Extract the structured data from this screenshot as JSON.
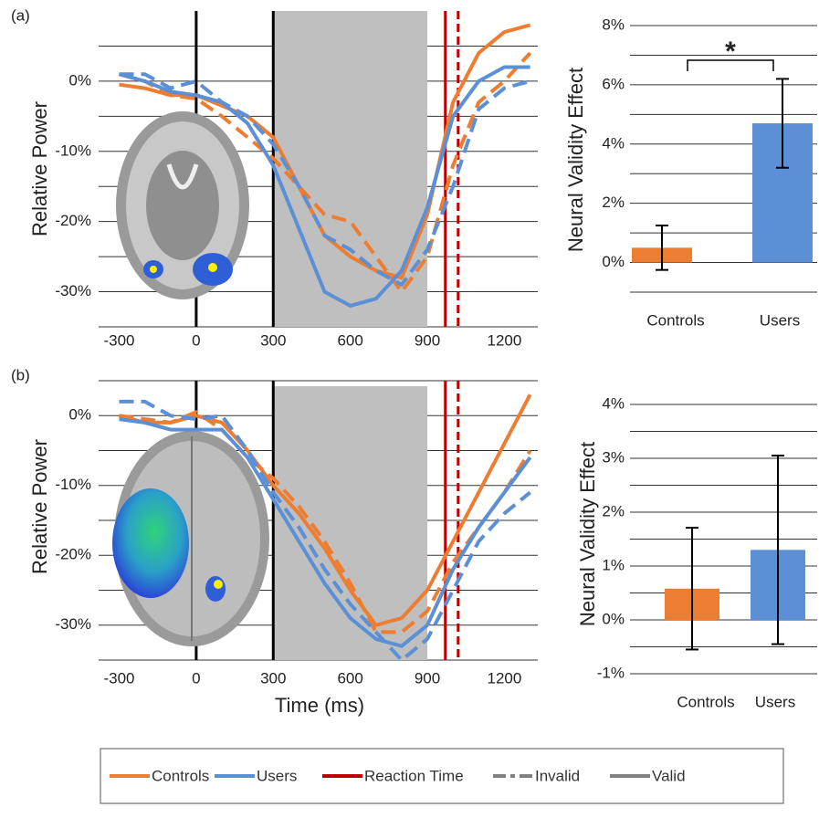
{
  "chart_data": [
    {
      "type": "line",
      "panel_label": "(a)",
      "y_label": "Relative Power",
      "x": [
        -300,
        -200,
        -100,
        0,
        100,
        200,
        300,
        400,
        500,
        600,
        700,
        800,
        900,
        1000,
        1100,
        1200,
        1300
      ],
      "xlim": [
        -380,
        1330
      ],
      "xticks": [
        -300,
        0,
        300,
        600,
        900,
        1200
      ],
      "ylim": [
        -35,
        10
      ],
      "yticks": [
        {
          "value": 0,
          "label": "0%"
        },
        {
          "value": -10,
          "label": "-10%"
        },
        {
          "value": -20,
          "label": "-20%"
        },
        {
          "value": -30,
          "label": "-30%"
        }
      ],
      "grid_lines": [
        5,
        -5,
        -15,
        -25,
        -35
      ],
      "shaded_region": [
        300,
        900
      ],
      "shade_color": "#bfbfbf",
      "vlines": [
        {
          "value": 0,
          "color": "#000000",
          "dashed": false
        },
        {
          "value": 300,
          "color": "#000000",
          "dashed": false
        },
        {
          "value": 970,
          "color": "#c00000",
          "dashed": false
        },
        {
          "value": 1020,
          "color": "#c00000",
          "dashed": true
        }
      ],
      "series": [
        {
          "color": "#ed7d31",
          "dashed": false,
          "values": [
            -0.5,
            -1,
            -2,
            -2,
            -3.5,
            -5,
            -8,
            -15,
            -22,
            -25,
            -27,
            -28,
            -19,
            -3,
            4,
            7,
            8
          ]
        },
        {
          "color": "#ed7d31",
          "dashed": true,
          "values": [
            1,
            0,
            -2,
            -2.5,
            -5,
            -8,
            -11,
            -15,
            -19,
            -20,
            -25,
            -30,
            -25,
            -12,
            -3,
            0,
            4
          ]
        },
        {
          "color": "#5b8fd6",
          "dashed": false,
          "values": [
            1,
            0,
            -1.5,
            -2,
            -3,
            -6,
            -12,
            -21,
            -30,
            -32,
            -31,
            -27,
            -18,
            -5,
            0,
            2,
            2
          ]
        },
        {
          "color": "#5b8fd6",
          "dashed": true,
          "values": [
            1,
            1,
            -1,
            0,
            -3,
            -5,
            -9,
            -15,
            -22,
            -24,
            -27,
            -29,
            -24,
            -15,
            -4,
            -1,
            0
          ]
        }
      ]
    },
    {
      "type": "bar",
      "y_label": "Neural Validity Effect",
      "categories": [
        "Controls",
        "Users"
      ],
      "values": [
        0.5,
        4.7
      ],
      "errors": [
        0.75,
        1.5
      ],
      "colors": [
        "#ed7d31",
        "#5b8fd6"
      ],
      "ylim": [
        -1,
        8
      ],
      "yticks": [
        {
          "value": 0,
          "label": "0%"
        },
        {
          "value": 2,
          "label": "2%"
        },
        {
          "value": 4,
          "label": "4%"
        },
        {
          "value": 6,
          "label": "6%"
        },
        {
          "value": 8,
          "label": "8%"
        }
      ],
      "grid_lines": [
        -1,
        1,
        3,
        5,
        7
      ],
      "annotation": "*"
    },
    {
      "type": "line",
      "panel_label": "(b)",
      "y_label": "Relative Power",
      "x_label": "Time (ms)",
      "x": [
        -300,
        -200,
        -100,
        0,
        100,
        200,
        300,
        400,
        500,
        600,
        700,
        800,
        900,
        1000,
        1100,
        1200,
        1300
      ],
      "xlim": [
        -380,
        1330
      ],
      "xticks": [
        -300,
        0,
        300,
        600,
        900,
        1200
      ],
      "ylim": [
        -35,
        5
      ],
      "yticks": [
        {
          "value": 0,
          "label": "0%"
        },
        {
          "value": -10,
          "label": "-10%"
        },
        {
          "value": -20,
          "label": "-20%"
        },
        {
          "value": -30,
          "label": "-30%"
        }
      ],
      "grid_lines": [
        5,
        -5,
        -15,
        -25,
        -35
      ],
      "shaded_region": [
        300,
        900
      ],
      "shade_color": "#bfbfbf",
      "vlines": [
        {
          "value": 0,
          "color": "#000000",
          "dashed": false
        },
        {
          "value": 300,
          "color": "#000000",
          "dashed": false
        },
        {
          "value": 970,
          "color": "#c00000",
          "dashed": false
        },
        {
          "value": 1020,
          "color": "#c00000",
          "dashed": true
        }
      ],
      "series": [
        {
          "color": "#ed7d31",
          "dashed": false,
          "values": [
            0,
            -1,
            -1,
            0,
            -1,
            -5,
            -10,
            -14,
            -19,
            -25,
            -30,
            -29,
            -25,
            -18,
            -11,
            -4,
            3
          ]
        },
        {
          "color": "#ed7d31",
          "dashed": true,
          "values": [
            0,
            -0.5,
            -1,
            0.5,
            -2,
            -6,
            -9,
            -13,
            -18,
            -24,
            -31,
            -31,
            -28,
            -21,
            -16,
            -11,
            -5
          ]
        },
        {
          "color": "#5b8fd6",
          "dashed": false,
          "values": [
            -0.5,
            -1,
            -2,
            -2,
            -2,
            -6,
            -12,
            -18,
            -24,
            -29,
            -32,
            -33,
            -30,
            -22,
            -16,
            -11,
            -6
          ]
        },
        {
          "color": "#5b8fd6",
          "dashed": true,
          "values": [
            2,
            2,
            0,
            -0.5,
            0,
            -5,
            -11,
            -16,
            -22,
            -27,
            -31,
            -35,
            -32,
            -25,
            -18,
            -14,
            -11
          ]
        }
      ]
    },
    {
      "type": "bar",
      "y_label": "Neural Validity Effect",
      "categories": [
        "Controls",
        "Users"
      ],
      "values": [
        0.58,
        1.3
      ],
      "errors": [
        1.13,
        1.75
      ],
      "colors": [
        "#ed7d31",
        "#5b8fd6"
      ],
      "ylim": [
        -1,
        4
      ],
      "yticks": [
        {
          "value": -1,
          "label": "-1%"
        },
        {
          "value": 0,
          "label": "0%"
        },
        {
          "value": 1,
          "label": "1%"
        },
        {
          "value": 2,
          "label": "2%"
        },
        {
          "value": 3,
          "label": "3%"
        },
        {
          "value": 4,
          "label": "4%"
        }
      ],
      "grid_lines": [
        -0.5,
        0.5,
        1.5,
        2.5,
        3.5
      ]
    }
  ],
  "legend": [
    {
      "label": "Controls",
      "color": "#ed7d31",
      "dashed": false
    },
    {
      "label": "Users",
      "color": "#5b8fd6",
      "dashed": false
    },
    {
      "label": "Reaction Time",
      "color": "#c00000",
      "dashed": false
    },
    {
      "label": "Invalid",
      "color": "#808080",
      "dashed": true
    },
    {
      "label": "Valid",
      "color": "#808080",
      "dashed": false
    }
  ]
}
